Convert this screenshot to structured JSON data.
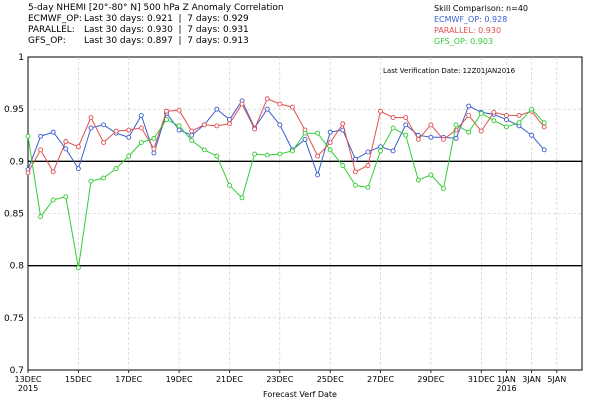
{
  "header": {
    "title": "5-day NHEMI [20°-80° N] 500 hPa Z Anomaly Correlation",
    "stats": [
      {
        "name": "ECMWF_OP:",
        "text": "Last 30 days: 0.921  |  7 days: 0.929"
      },
      {
        "name": "PARALLEL:",
        "text": "Last 30 days: 0.930  |  7 days: 0.931"
      },
      {
        "name": "GFS_OP:",
        "text": "Last 30 days: 0.897  |  7 days: 0.913"
      }
    ],
    "skill_title": "Skill Comparison: n=40",
    "skill": [
      {
        "text": "ECMWF_OP: 0.928",
        "color": "#3a5fcd"
      },
      {
        "text": "PARALLEL: 0.930",
        "color": "#e05050"
      },
      {
        "text": "GFS_OP: 0.903",
        "color": "#33cc33"
      }
    ]
  },
  "chart_data": {
    "type": "line",
    "annotation": "Last Verification Date: 12Z01JAN2016",
    "xlabel": "Forecast Verf Date",
    "ylabel": "",
    "ylim": [
      0.7,
      1.0
    ],
    "yticks": [
      0.7,
      0.75,
      0.8,
      0.85,
      0.9,
      0.95,
      1
    ],
    "ytick_labels": [
      "0.7",
      "0.75",
      "0.8",
      "0.85",
      "0.9",
      "0.95",
      "1"
    ],
    "reference_lines": [
      0.9,
      0.8
    ],
    "xlim": [
      0,
      44
    ],
    "xticks": [
      {
        "x": 0,
        "label": "13DEC",
        "sub": "2015"
      },
      {
        "x": 4,
        "label": "15DEC",
        "sub": ""
      },
      {
        "x": 8,
        "label": "17DEC",
        "sub": ""
      },
      {
        "x": 12,
        "label": "19DEC",
        "sub": ""
      },
      {
        "x": 16,
        "label": "21DEC",
        "sub": ""
      },
      {
        "x": 20,
        "label": "23DEC",
        "sub": ""
      },
      {
        "x": 24,
        "label": "25DEC",
        "sub": ""
      },
      {
        "x": 28,
        "label": "27DEC",
        "sub": ""
      },
      {
        "x": 32,
        "label": "29DEC",
        "sub": ""
      },
      {
        "x": 36,
        "label": "31DEC",
        "sub": ""
      },
      {
        "x": 38,
        "label": "1JAN",
        "sub": "2016"
      },
      {
        "x": 40,
        "label": "3JAN",
        "sub": ""
      },
      {
        "x": 42,
        "label": "5JAN",
        "sub": ""
      }
    ],
    "series": [
      {
        "name": "ECMWF_OP",
        "color": "#3a5fcd",
        "values": [
          0.892,
          0.924,
          0.928,
          0.912,
          0.893,
          0.932,
          0.935,
          0.927,
          0.923,
          0.944,
          0.908,
          0.946,
          0.93,
          0.925,
          0.935,
          0.95,
          0.94,
          0.958,
          0.932,
          0.95,
          0.935,
          0.911,
          0.921,
          0.887,
          0.928,
          0.93,
          0.902,
          0.909,
          0.914,
          0.91,
          0.935,
          0.925,
          0.923,
          0.923,
          0.922,
          0.953,
          0.947,
          0.945,
          0.94,
          0.934,
          0.925,
          0.911
        ]
      },
      {
        "name": "PARALLEL",
        "color": "#e05050",
        "values": [
          0.889,
          0.911,
          0.89,
          0.919,
          0.914,
          0.942,
          0.918,
          0.929,
          0.93,
          0.932,
          0.912,
          0.948,
          0.949,
          0.929,
          0.935,
          0.934,
          0.936,
          0.955,
          0.931,
          0.96,
          0.955,
          0.952,
          0.93,
          0.905,
          0.918,
          0.936,
          0.89,
          0.896,
          0.948,
          0.942,
          0.942,
          0.921,
          0.935,
          0.921,
          0.93,
          0.944,
          0.929,
          0.947,
          0.944,
          0.944,
          0.948,
          0.933
        ]
      },
      {
        "name": "GFS_OP",
        "color": "#33cc33",
        "values": [
          0.924,
          0.847,
          0.863,
          0.866,
          0.798,
          0.881,
          0.884,
          0.893,
          0.905,
          0.918,
          0.922,
          0.94,
          0.934,
          0.92,
          0.911,
          0.905,
          0.877,
          0.865,
          0.907,
          0.906,
          0.907,
          0.91,
          0.927,
          0.927,
          0.911,
          0.896,
          0.877,
          0.875,
          0.91,
          0.932,
          0.925,
          0.882,
          0.887,
          0.874,
          0.935,
          0.928,
          0.946,
          0.939,
          0.933,
          0.937,
          0.95,
          0.937
        ]
      }
    ]
  }
}
